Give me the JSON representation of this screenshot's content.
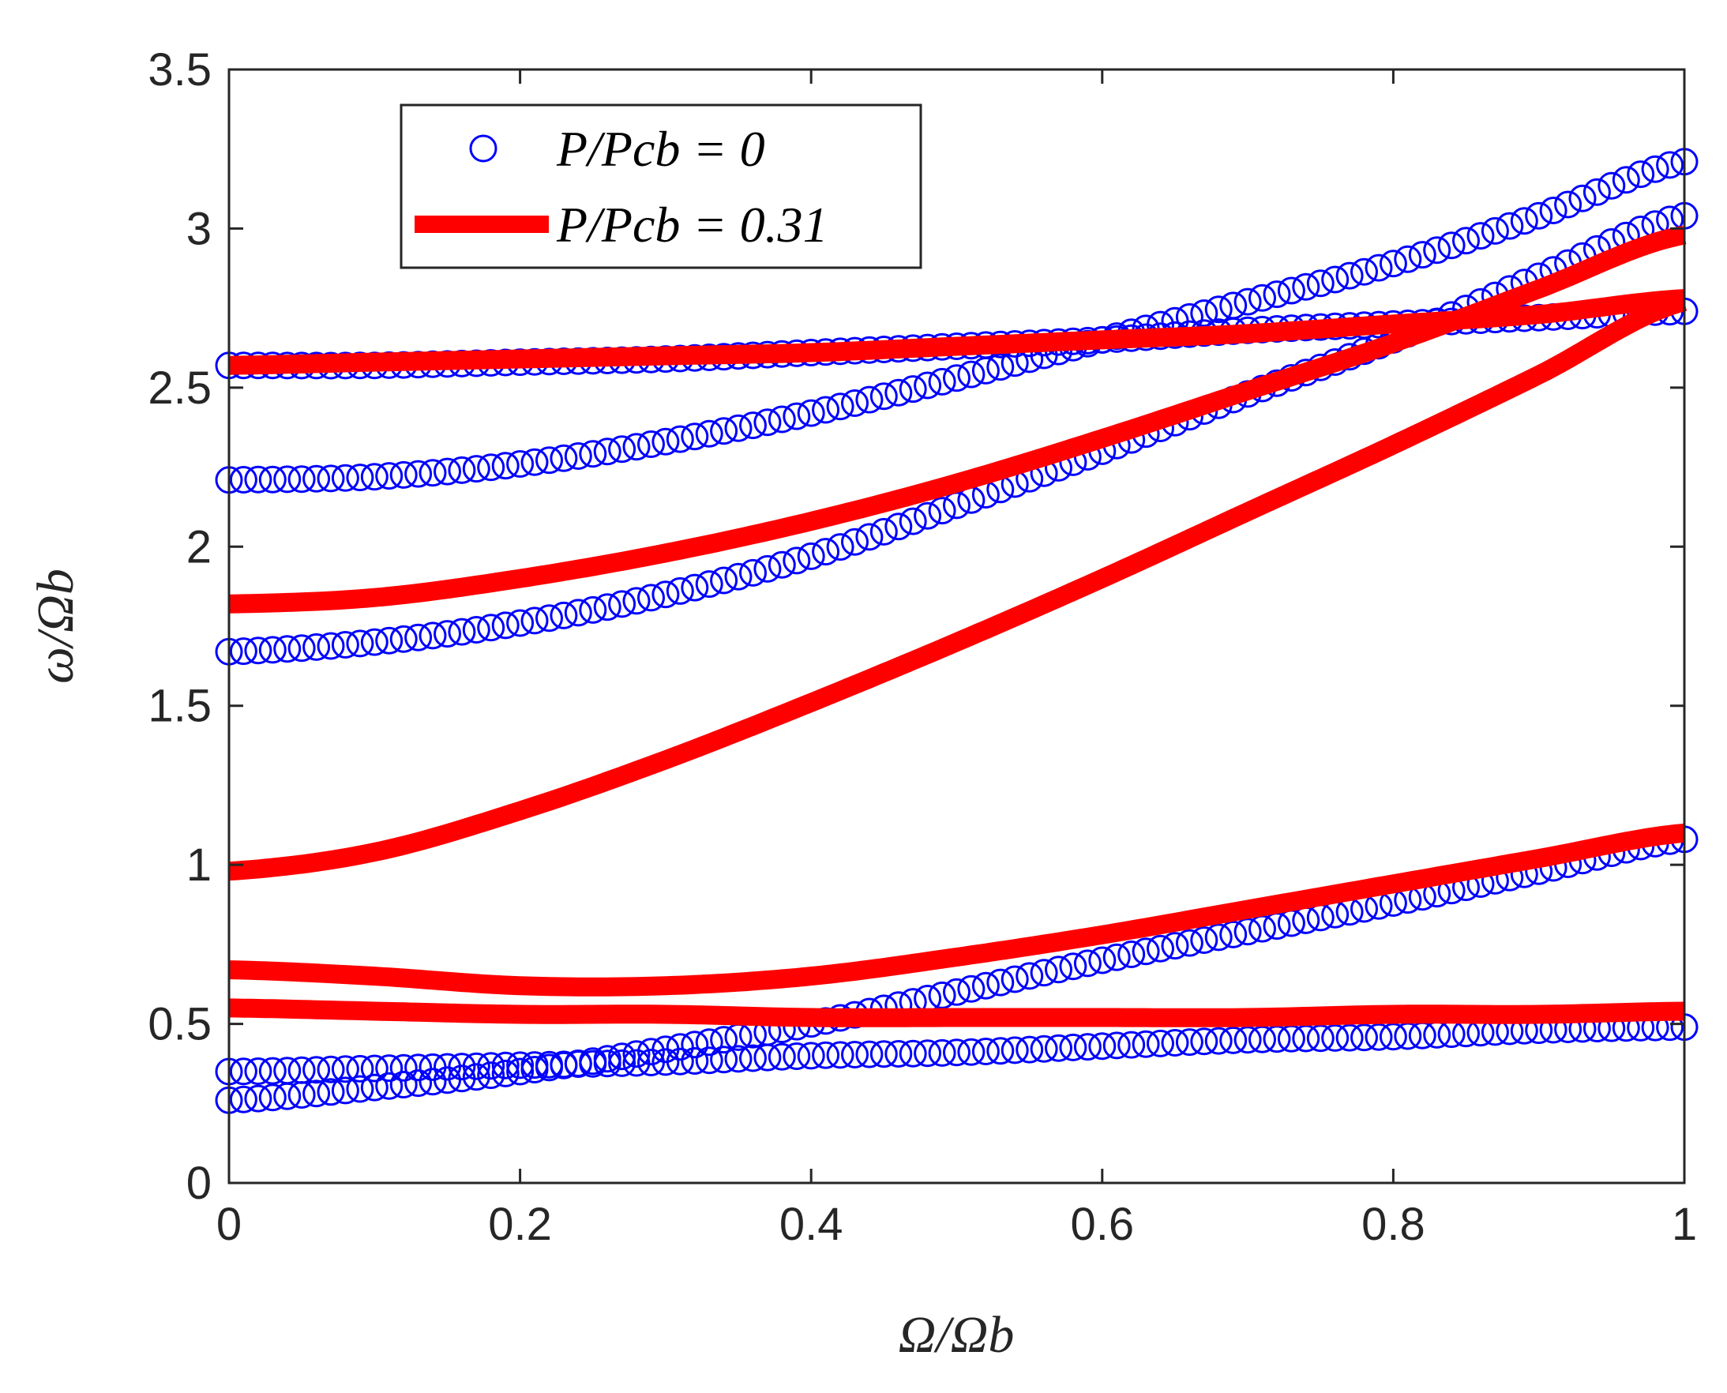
{
  "chart_data": {
    "type": "line",
    "title": "",
    "xlabel": "Ω/Ωb",
    "ylabel": "ω/Ωb",
    "xlim": [
      0,
      1
    ],
    "ylim": [
      0,
      3.5
    ],
    "xticks": [
      "0",
      "0.2",
      "0.4",
      "0.6",
      "0.8",
      "1"
    ],
    "yticks": [
      "0",
      "0.5",
      "1",
      "1.5",
      "2",
      "2.5",
      "3",
      "3.5"
    ],
    "grid": false,
    "legend_position": "top-left",
    "colors": {
      "circles": "#0000ff",
      "thick": "#ff0000",
      "axis": "#262626"
    },
    "legend": [
      {
        "label": "P/Pcb = 0",
        "style": "circles",
        "color": "#0000ff"
      },
      {
        "label": "P/Pcb = 0.31",
        "style": "thick-line",
        "color": "#ff0000"
      }
    ],
    "x": [
      0,
      0.1,
      0.2,
      0.3,
      0.4,
      0.5,
      0.6,
      0.7,
      0.8,
      0.9,
      1.0
    ],
    "series": [
      {
        "name": "P/Pcb = 0, mode 1",
        "style": "circles",
        "values": [
          0.35,
          0.36,
          0.37,
          0.38,
          0.4,
          0.41,
          0.43,
          0.45,
          0.46,
          0.48,
          0.49
        ]
      },
      {
        "name": "P/Pcb = 0, mode 2",
        "style": "circles",
        "values": [
          0.26,
          0.3,
          0.35,
          0.42,
          0.5,
          0.6,
          0.7,
          0.79,
          0.88,
          0.98,
          1.08
        ]
      },
      {
        "name": "P/Pcb = 0, mode 3",
        "style": "circles",
        "values": [
          1.67,
          1.7,
          1.76,
          1.85,
          1.97,
          2.13,
          2.3,
          2.48,
          2.65,
          2.85,
          3.04
        ]
      },
      {
        "name": "P/Pcb = 0, mode 4",
        "style": "circles",
        "values": [
          2.21,
          2.22,
          2.26,
          2.33,
          2.42,
          2.53,
          2.65,
          2.77,
          2.89,
          3.04,
          3.21
        ]
      },
      {
        "name": "P/Pcb = 0, mode 5",
        "style": "circles",
        "values": [
          2.57,
          2.57,
          2.58,
          2.59,
          2.61,
          2.63,
          2.65,
          2.68,
          2.7,
          2.72,
          2.74
        ]
      },
      {
        "name": "P/Pcb = 0.31, mode 1",
        "style": "thick-line",
        "values": [
          0.55,
          0.54,
          0.53,
          0.53,
          0.52,
          0.52,
          0.52,
          0.52,
          0.53,
          0.53,
          0.54
        ]
      },
      {
        "name": "P/Pcb = 0.31, mode 2",
        "style": "thick-line",
        "values": [
          0.67,
          0.65,
          0.62,
          0.62,
          0.65,
          0.71,
          0.78,
          0.86,
          0.94,
          1.02,
          1.1
        ]
      },
      {
        "name": "P/Pcb = 0.31, mode 3",
        "style": "thick-line",
        "values": [
          0.98,
          1.04,
          1.17,
          1.33,
          1.51,
          1.7,
          1.9,
          2.11,
          2.32,
          2.54,
          2.77
        ]
      },
      {
        "name": "P/Pcb = 0.31, mode 4",
        "style": "thick-line",
        "values": [
          1.82,
          1.84,
          1.9,
          1.98,
          2.08,
          2.2,
          2.34,
          2.49,
          2.64,
          2.81,
          2.98
        ]
      },
      {
        "name": "P/Pcb = 0.31, mode 5",
        "style": "thick-line",
        "values": [
          2.57,
          2.58,
          2.59,
          2.6,
          2.61,
          2.63,
          2.65,
          2.67,
          2.7,
          2.73,
          2.78
        ]
      }
    ]
  }
}
